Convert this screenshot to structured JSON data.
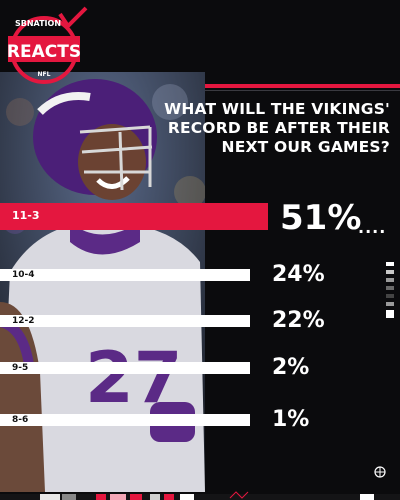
{
  "brand": {
    "top": "SBNATION",
    "main": "REACTS",
    "bottom": "NFL",
    "accent": "#e4173f"
  },
  "question": "WHAT WILL THE VIKINGS' RECORD BE AFTER THEIR NEXT OUR GAMES?",
  "icons": [
    "checkmark-icon",
    "globe-icon"
  ],
  "chart_data": {
    "type": "bar",
    "orientation": "horizontal",
    "title": "WHAT WILL THE VIKINGS' RECORD BE AFTER THEIR NEXT OUR GAMES?",
    "categories": [
      "11-3",
      "10-4",
      "12-2",
      "9-5",
      "8-6"
    ],
    "values": [
      51,
      24,
      22,
      2,
      1
    ],
    "labels": [
      "51%",
      "24%",
      "22%",
      "2%",
      "1%"
    ],
    "value_unit": "%",
    "highlight_index": 0,
    "highlight_color": "#e4173f",
    "bar_color": "#ffffff",
    "grid": false
  }
}
